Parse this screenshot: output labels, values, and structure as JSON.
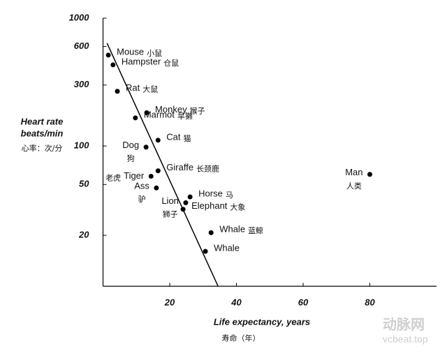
{
  "chart_data": {
    "type": "scatter",
    "y_label": [
      "Heart rate",
      "beats/min",
      "心率：次/分"
    ],
    "x_label": [
      "Life expectancy, years",
      "寿命（年）"
    ],
    "labels": [
      "Mouse",
      "Hampster",
      "Rat",
      "Monkey",
      "Marmot",
      "Cat",
      "Dog",
      "Giraffe",
      "Tiger",
      "Ass",
      "Horse",
      "Lion",
      "Elephant",
      "Whale",
      "Whale",
      "Man"
    ],
    "labels_zh": [
      "小鼠",
      "仓鼠",
      "大鼠",
      "猴子",
      "旱獭",
      "猫",
      "狗",
      "长颈鹿",
      "老虎",
      "驴",
      "马",
      "狮子",
      "大象",
      "蓝鲸",
      null,
      "人类"
    ],
    "x": [
      1.6,
      3.0,
      4.3,
      13.1,
      9.7,
      16.5,
      12.9,
      16.5,
      14.4,
      16.0,
      26.1,
      24.8,
      24.0,
      32.4,
      30.7,
      80
    ],
    "y": [
      514,
      431,
      268,
      182,
      166,
      111,
      98,
      64,
      58,
      47,
      40,
      36,
      32,
      21,
      15,
      60
    ],
    "color": "#000000",
    "fit_line": {
      "x": [
        1.2,
        34.5
      ],
      "y": [
        637,
        8
      ]
    },
    "xlim": [
      0,
      100
    ],
    "ylim": [
      8,
      1000
    ],
    "log_y": true,
    "xticks": [
      20,
      40,
      60,
      80
    ],
    "yticks": [
      20,
      50,
      100,
      300,
      600,
      1000
    ],
    "watermark": [
      "动脉网",
      "vcbeat.top"
    ]
  }
}
